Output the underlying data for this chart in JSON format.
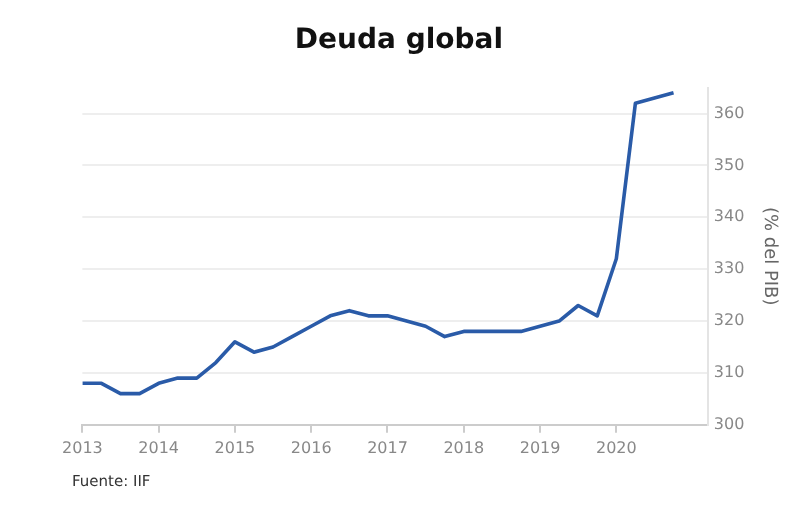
{
  "chart_data": {
    "type": "line",
    "title": "Deuda global",
    "ylabel": "(% del PIB)",
    "x": [
      2013,
      2013.25,
      2013.5,
      2013.75,
      2014,
      2014.25,
      2014.5,
      2014.75,
      2015,
      2015.25,
      2015.5,
      2015.75,
      2016,
      2016.25,
      2016.5,
      2016.75,
      2017,
      2017.25,
      2017.5,
      2017.75,
      2018,
      2018.25,
      2018.5,
      2018.75,
      2019,
      2019.25,
      2019.5,
      2019.75,
      2020,
      2020.25,
      2020.5,
      2020.75
    ],
    "series": [
      {
        "color": "#2a5ba8",
        "values": [
          308,
          308,
          306,
          306,
          308,
          309,
          309,
          312,
          316,
          314,
          315,
          317,
          319,
          321,
          322,
          321,
          321,
          320,
          319,
          317,
          318,
          318,
          318,
          318,
          319,
          320,
          323,
          321,
          332,
          362,
          363,
          364
        ]
      }
    ],
    "xlim": [
      2013,
      2021.2
    ],
    "xticks": [
      2013,
      2014,
      2015,
      2016,
      2017,
      2018,
      2019,
      2020
    ],
    "ylim": [
      300,
      365
    ],
    "yticks": [
      300,
      310,
      320,
      330,
      340,
      350,
      360
    ],
    "grid": "y",
    "legend": false,
    "marker": "none",
    "line_style": "solid",
    "annotations": [
      "Fuente: IIF"
    ]
  }
}
